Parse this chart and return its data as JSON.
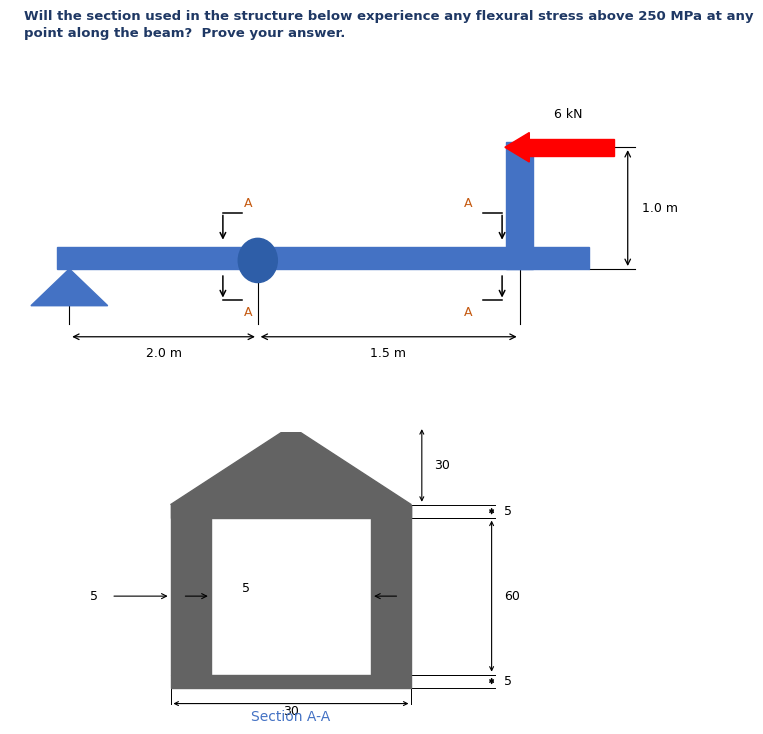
{
  "title_line1": "Will the section used in the structure below experience any flexural stress above 250 MPa at any",
  "title_line2": "point along the beam?  Prove your answer.",
  "title_fontsize": 9.5,
  "title_color": "#1f3864",
  "beam_color": "#4472c4",
  "load_color": "#ff0000",
  "load_label": "6 kN",
  "dim_2m_label": "2.0 m",
  "dim_15m_label": "1.5 m",
  "dim_1m_label": "1.0 m",
  "section_label": "Section A-A",
  "sec_color": "#636363",
  "dim_color": "#000000",
  "annotation_A_color": "#c55a11"
}
